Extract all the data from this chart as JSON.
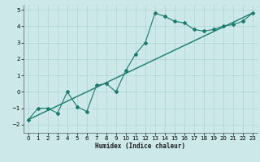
{
  "xlabel": "Humidex (Indice chaleur)",
  "ylabel": "",
  "bg_color": "#cce8e8",
  "line_color": "#1a7a6e",
  "grid_color": "#aed4d4",
  "scatter_x": [
    0,
    1,
    2,
    3,
    4,
    5,
    6,
    7,
    8,
    9,
    10,
    11,
    12,
    13,
    14,
    15,
    16,
    17,
    18,
    19,
    20,
    21,
    22,
    23
  ],
  "scatter_y": [
    -1.7,
    -1.0,
    -1.0,
    -1.3,
    0.0,
    -0.9,
    -1.2,
    0.4,
    0.5,
    0.0,
    1.3,
    2.3,
    3.0,
    4.8,
    4.6,
    4.3,
    4.2,
    3.8,
    3.7,
    3.8,
    4.0,
    4.1,
    4.3,
    4.8
  ],
  "trend_x": [
    0,
    23
  ],
  "trend_y": [
    -1.7,
    4.8
  ],
  "xlim": [
    -0.5,
    23.5
  ],
  "ylim": [
    -2.5,
    5.3
  ],
  "xtick_step": 1,
  "ytick_step": 1,
  "yticks": [
    -2,
    -1,
    0,
    1,
    2,
    3,
    4,
    5
  ]
}
